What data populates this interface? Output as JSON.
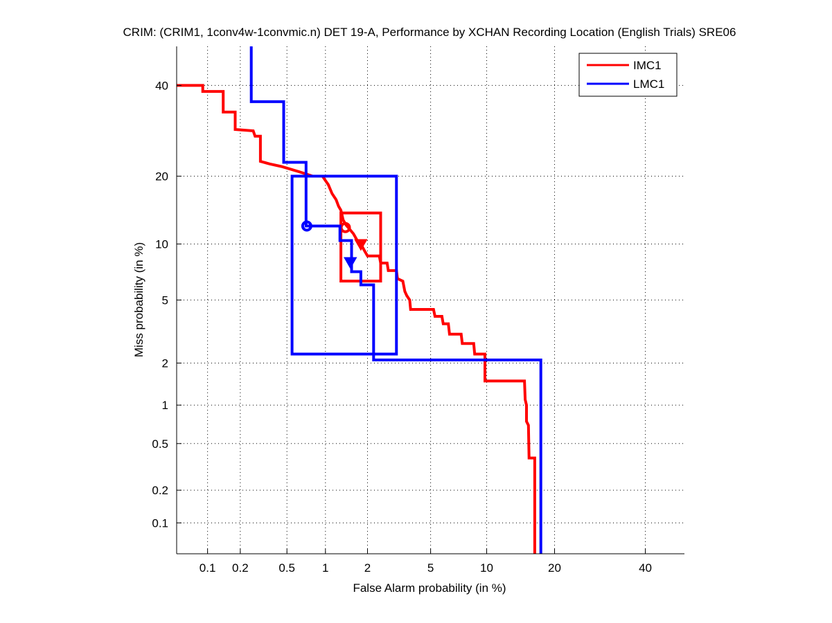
{
  "chart_data": {
    "type": "line",
    "subtype": "DET curve (normal deviate scale)",
    "title": "CRIM: (CRIM1, 1conv4w-1convmic.n) DET 19-A,  Performance by XCHAN Recording Location (English Trials) SRE06",
    "xlabel": "False Alarm probability (in %)",
    "ylabel": "Miss probability (in %)",
    "xlim": [
      0.05,
      50
    ],
    "ylim": [
      0.05,
      50
    ],
    "scale": "probit",
    "grid": true,
    "legend_position": "top-right",
    "x_ticks": [
      {
        "value": 0.1,
        "label": "0.1"
      },
      {
        "value": 0.2,
        "label": "0.2"
      },
      {
        "value": 0.5,
        "label": "0.5"
      },
      {
        "value": 1,
        "label": "1"
      },
      {
        "value": 2,
        "label": "2"
      },
      {
        "value": 5,
        "label": "5"
      },
      {
        "value": 10,
        "label": "10"
      },
      {
        "value": 20,
        "label": "20"
      },
      {
        "value": 40,
        "label": "40"
      }
    ],
    "y_ticks": [
      {
        "value": 0.1,
        "label": "0.1"
      },
      {
        "value": 0.2,
        "label": "0.2"
      },
      {
        "value": 0.5,
        "label": "0.5"
      },
      {
        "value": 1,
        "label": "1"
      },
      {
        "value": 2,
        "label": "2"
      },
      {
        "value": 5,
        "label": "5"
      },
      {
        "value": 10,
        "label": "10"
      },
      {
        "value": 20,
        "label": "20"
      },
      {
        "value": 40,
        "label": "40"
      }
    ],
    "series": [
      {
        "name": "IMC1",
        "color": "#ff0000",
        "points": [
          [
            0.05,
            40
          ],
          [
            0.09,
            40
          ],
          [
            0.09,
            38.5
          ],
          [
            0.14,
            38.5
          ],
          [
            0.14,
            33.5
          ],
          [
            0.18,
            33.5
          ],
          [
            0.18,
            29.5
          ],
          [
            0.26,
            29.2
          ],
          [
            0.27,
            28
          ],
          [
            0.3,
            28
          ],
          [
            0.3,
            22.8
          ],
          [
            0.36,
            22.3
          ],
          [
            0.45,
            21.8
          ],
          [
            0.55,
            21.2
          ],
          [
            0.65,
            20.7
          ],
          [
            0.8,
            20
          ],
          [
            0.95,
            20
          ],
          [
            1.0,
            19.2
          ],
          [
            1.05,
            18.5
          ],
          [
            1.12,
            17
          ],
          [
            1.2,
            16
          ],
          [
            1.25,
            15
          ],
          [
            1.3,
            14.4
          ],
          [
            1.35,
            13
          ],
          [
            1.42,
            12.3
          ],
          [
            1.5,
            11.8
          ],
          [
            1.6,
            11.2
          ],
          [
            1.7,
            10.4
          ],
          [
            1.8,
            10
          ],
          [
            1.9,
            9.3
          ],
          [
            2.0,
            8.7
          ],
          [
            2.4,
            8.7
          ],
          [
            2.45,
            8.0
          ],
          [
            2.7,
            8.0
          ],
          [
            2.75,
            7.3
          ],
          [
            3.1,
            7.3
          ],
          [
            3.15,
            6.6
          ],
          [
            3.4,
            6.4
          ],
          [
            3.5,
            5.6
          ],
          [
            3.6,
            5.3
          ],
          [
            3.75,
            5.0
          ],
          [
            3.8,
            4.4
          ],
          [
            5.2,
            4.4
          ],
          [
            5.3,
            4.0
          ],
          [
            5.8,
            4.0
          ],
          [
            5.9,
            3.6
          ],
          [
            6.3,
            3.6
          ],
          [
            6.4,
            3.1
          ],
          [
            7.4,
            3.1
          ],
          [
            7.5,
            2.7
          ],
          [
            8.6,
            2.7
          ],
          [
            8.7,
            2.3
          ],
          [
            9.8,
            2.3
          ],
          [
            9.8,
            1.5
          ],
          [
            15.0,
            1.5
          ],
          [
            15.1,
            1.1
          ],
          [
            15.3,
            1.0
          ],
          [
            15.3,
            0.75
          ],
          [
            15.6,
            0.7
          ],
          [
            15.7,
            0.38
          ],
          [
            16.6,
            0.38
          ],
          [
            16.6,
            0.05
          ]
        ],
        "confidence_box": {
          "fa": [
            1.3,
            2.45
          ],
          "miss": [
            6.4,
            14
          ]
        },
        "min_dcf_point": {
          "fa": 1.8,
          "miss": 10,
          "marker": "triangle"
        },
        "act_dcf_point": {
          "fa": 1.4,
          "miss": 12,
          "marker": "circle"
        }
      },
      {
        "name": "LMC1",
        "color": "#0000ff",
        "points": [
          [
            0.25,
            50
          ],
          [
            0.25,
            36
          ],
          [
            0.47,
            36
          ],
          [
            0.47,
            22.6
          ],
          [
            0.71,
            22.6
          ],
          [
            0.71,
            12.2
          ],
          [
            1.28,
            12.2
          ],
          [
            1.28,
            10.4
          ],
          [
            1.55,
            10.4
          ],
          [
            1.55,
            7.2
          ],
          [
            1.8,
            7.2
          ],
          [
            1.8,
            6.1
          ],
          [
            2.2,
            6.1
          ],
          [
            2.2,
            2.1
          ],
          [
            17.6,
            2.1
          ],
          [
            17.6,
            0.05
          ]
        ],
        "confidence_box": {
          "fa": [
            0.55,
            3.1
          ],
          "miss": [
            2.3,
            20
          ]
        },
        "min_dcf_point": {
          "fa": 1.52,
          "miss": 8.1,
          "marker": "triangle"
        },
        "act_dcf_point": {
          "fa": 0.72,
          "miss": 12.2,
          "marker": "circle"
        }
      }
    ]
  }
}
